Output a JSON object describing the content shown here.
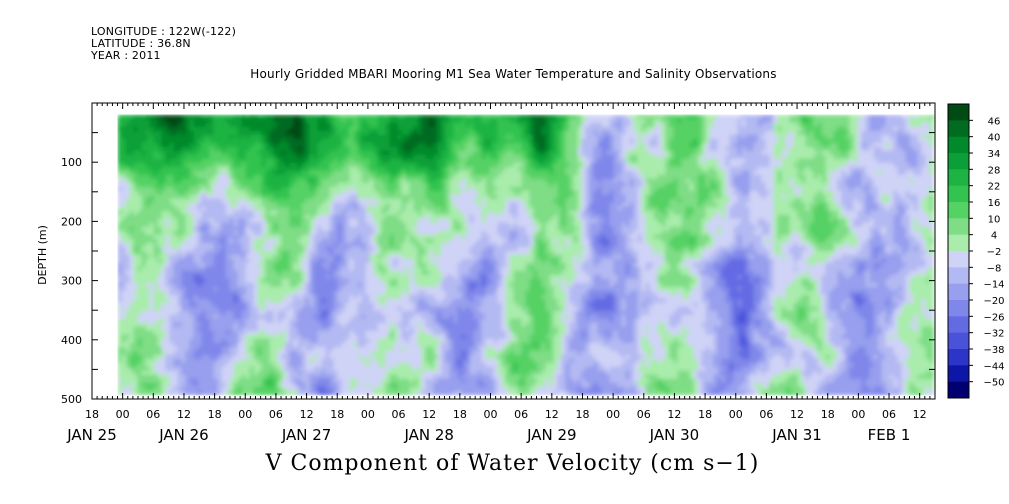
{
  "header": {
    "longitude": "LONGITUDE : 122W(-122)",
    "latitude": "LATITUDE : 36.8N",
    "year": "YEAR : 2011"
  },
  "chart_data": {
    "type": "heatmap",
    "title": "Hourly Gridded MBARI Mooring M1 Sea Water Temperature and Salinity Observations",
    "variable_label": "V Component of Water Velocity (cm s−1)",
    "ylabel": "DEPTH (m)",
    "y_reversed": true,
    "ylim": [
      500,
      0
    ],
    "data_depth_range": [
      20,
      490
    ],
    "y_ticks": [
      100,
      200,
      300,
      400,
      500
    ],
    "y_tick_labels": [
      "100",
      "200",
      "300",
      "400",
      "500"
    ],
    "x_start_hour": -6,
    "x_end_hour": 159,
    "data_start_hour": -1,
    "data_end_hour": 158,
    "x_major_ticks": [
      {
        "hour": -6,
        "label": "18"
      },
      {
        "hour": 0,
        "label": "00"
      },
      {
        "hour": 6,
        "label": "06"
      },
      {
        "hour": 12,
        "label": "12"
      },
      {
        "hour": 18,
        "label": "18"
      },
      {
        "hour": 24,
        "label": "00"
      },
      {
        "hour": 30,
        "label": "06"
      },
      {
        "hour": 36,
        "label": "12"
      },
      {
        "hour": 42,
        "label": "18"
      },
      {
        "hour": 48,
        "label": "00"
      },
      {
        "hour": 54,
        "label": "06"
      },
      {
        "hour": 60,
        "label": "12"
      },
      {
        "hour": 66,
        "label": "18"
      },
      {
        "hour": 72,
        "label": "00"
      },
      {
        "hour": 78,
        "label": "06"
      },
      {
        "hour": 84,
        "label": "12"
      },
      {
        "hour": 90,
        "label": "18"
      },
      {
        "hour": 96,
        "label": "00"
      },
      {
        "hour": 102,
        "label": "06"
      },
      {
        "hour": 108,
        "label": "12"
      },
      {
        "hour": 114,
        "label": "18"
      },
      {
        "hour": 120,
        "label": "00"
      },
      {
        "hour": 126,
        "label": "06"
      },
      {
        "hour": 132,
        "label": "12"
      },
      {
        "hour": 138,
        "label": "18"
      },
      {
        "hour": 144,
        "label": "00"
      },
      {
        "hour": 150,
        "label": "06"
      },
      {
        "hour": 156,
        "label": "12"
      }
    ],
    "date_labels": [
      {
        "hour": -6,
        "label": "JAN 25"
      },
      {
        "hour": 12,
        "label": "JAN 26"
      },
      {
        "hour": 36,
        "label": "JAN 27"
      },
      {
        "hour": 60,
        "label": "JAN 28"
      },
      {
        "hour": 84,
        "label": "JAN 29"
      },
      {
        "hour": 108,
        "label": "JAN 30"
      },
      {
        "hour": 132,
        "label": "JAN 31"
      },
      {
        "hour": 150,
        "label": "FEB  1"
      }
    ],
    "colorbar": {
      "levels": [
        -50,
        -44,
        -38,
        -32,
        -26,
        -20,
        -14,
        -8,
        -2,
        4,
        10,
        16,
        22,
        28,
        34,
        40,
        46
      ],
      "labels": [
        "46",
        "40",
        "34",
        "28",
        "22",
        "16",
        "10",
        "4",
        "−2",
        "−8",
        "−14",
        "−20",
        "−26",
        "−32",
        "−38",
        "−44",
        "−50"
      ],
      "colors_top_to_bottom": [
        "#004a14",
        "#006b21",
        "#008a2c",
        "#0a9f37",
        "#1eb343",
        "#33c350",
        "#55d264",
        "#7edd85",
        "#a9ecac",
        "#cfd3f6",
        "#b3b9f2",
        "#979fee",
        "#7f87ea",
        "#636be3",
        "#4a52da",
        "#2c35c7",
        "#0e16a8",
        "#000070"
      ]
    },
    "field_description": "green (positive, northward) currents dominate upper 150 m through Jan 28; blue (negative) bands at depth; alternating positive/negative columns after Jan 29"
  }
}
